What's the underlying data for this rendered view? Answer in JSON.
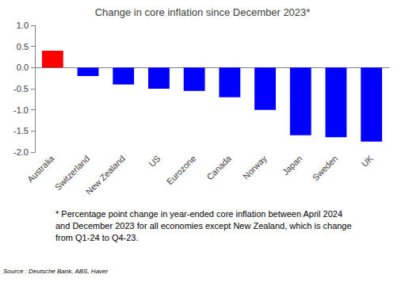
{
  "chart_data": {
    "type": "bar",
    "title": "Change in core inflation since December 2023*",
    "categories": [
      "Australia",
      "Switzerland",
      "New Zealand",
      "US",
      "Eurozone",
      "Canada",
      "Norway",
      "Japan",
      "Sweden",
      "UK"
    ],
    "values": [
      0.4,
      -0.2,
      -0.4,
      -0.5,
      -0.55,
      -0.7,
      -1.0,
      -1.6,
      -1.65,
      -1.75
    ],
    "colors": [
      "#ff0000",
      "#0000ff",
      "#0000ff",
      "#0000ff",
      "#0000ff",
      "#0000ff",
      "#0000ff",
      "#0000ff",
      "#0000ff",
      "#0000ff"
    ],
    "ylim": [
      -2,
      1
    ],
    "yticks": [
      {
        "value": -2,
        "label": "-2.0"
      },
      -1.5,
      {
        "value": -1,
        "label": "-1.0"
      },
      -0.5,
      {
        "value": 0,
        "label": "0.0"
      },
      0.5,
      {
        "value": 1,
        "label": "1.0"
      }
    ],
    "grid": false,
    "annotations": [
      "* Percentage point change in year-ended core inflation between April 2024 and December 2023 for all economies except New Zealand, which is change from Q1-24 to Q4-23.",
      "Source : Deutsche Bank, ABS, Haver"
    ]
  }
}
